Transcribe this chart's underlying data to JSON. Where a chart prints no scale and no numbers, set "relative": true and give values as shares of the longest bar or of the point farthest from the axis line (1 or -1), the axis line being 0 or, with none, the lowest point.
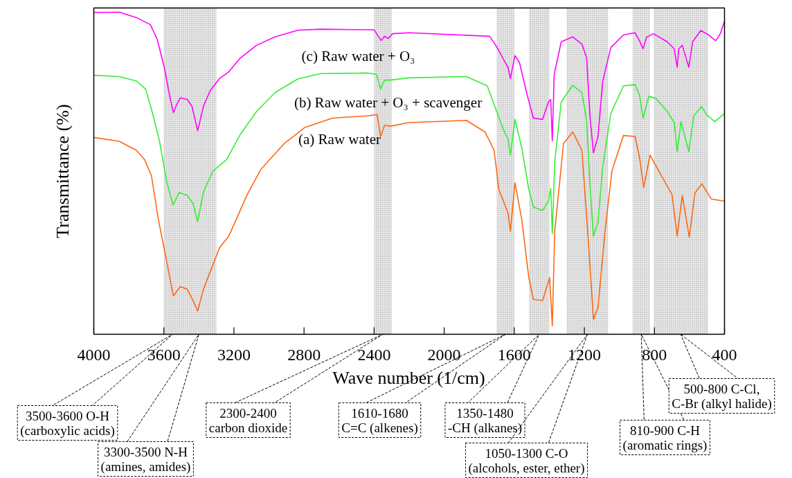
{
  "chart_data": {
    "type": "line",
    "relative": true,
    "xlabel": "Wave number (1/cm)",
    "ylabel": "Transmittance (%)",
    "xlim": [
      4000,
      400
    ],
    "xticks": [
      4000,
      3600,
      3200,
      2800,
      2400,
      2000,
      1600,
      1200,
      800,
      400
    ],
    "grid": false,
    "legend": false,
    "line_style": "solid",
    "marker": "none",
    "series": [
      {
        "name": "(c) Raw water + O₃",
        "color": "#ff00ff",
        "x": [
          4000,
          3855,
          3756,
          3677,
          3638,
          3598,
          3565,
          3546,
          3526,
          3506,
          3467,
          3440,
          3407,
          3374,
          3335,
          3282,
          3229,
          3163,
          3071,
          2966,
          2834,
          2703,
          2400,
          2360,
          2340,
          2320,
          2294,
          2202,
          1741,
          1701,
          1662,
          1636,
          1622,
          1596,
          1570,
          1530,
          1491,
          1438,
          1405,
          1392,
          1383,
          1372,
          1332,
          1266,
          1214,
          1187,
          1168,
          1148,
          1122,
          1095,
          1049,
          977,
          911,
          885,
          865,
          845,
          806,
          727,
          687,
          670,
          661,
          641,
          604,
          582,
          535,
          490,
          450,
          424,
          400
        ],
        "values": [
          0.999,
          1.0,
          0.983,
          0.961,
          0.915,
          0.829,
          0.735,
          0.688,
          0.714,
          0.734,
          0.729,
          0.708,
          0.632,
          0.708,
          0.757,
          0.794,
          0.815,
          0.858,
          0.897,
          0.923,
          0.944,
          0.947,
          0.945,
          0.912,
          0.925,
          0.918,
          0.933,
          0.936,
          0.925,
          0.893,
          0.854,
          0.829,
          0.794,
          0.865,
          0.843,
          0.751,
          0.671,
          0.667,
          0.721,
          0.729,
          0.6,
          0.807,
          0.908,
          0.923,
          0.901,
          0.858,
          0.678,
          0.563,
          0.614,
          0.786,
          0.89,
          0.929,
          0.936,
          0.911,
          0.886,
          0.922,
          0.933,
          0.908,
          0.886,
          0.829,
          0.886,
          0.897,
          0.829,
          0.908,
          0.943,
          0.929,
          0.911,
          0.933,
          0.972
        ]
      },
      {
        "name": "(b) Raw water + O₃ + scavenger",
        "color": "#33ee33",
        "x": [
          4000,
          3855,
          3756,
          3704,
          3664,
          3625,
          3585,
          3548,
          3513,
          3467,
          3434,
          3407,
          3374,
          3321,
          3242,
          3163,
          3071,
          2966,
          2834,
          2703,
          2439,
          2386,
          2363,
          2340,
          2307,
          2202,
          1873,
          1754,
          1701,
          1662,
          1636,
          1622,
          1596,
          1557,
          1517,
          1491,
          1438,
          1405,
          1392,
          1383,
          1369,
          1332,
          1266,
          1214,
          1187,
          1168,
          1148,
          1122,
          1095,
          1049,
          977,
          911,
          885,
          865,
          832,
          792,
          727,
          687,
          670,
          648,
          604,
          575,
          531,
          503,
          456,
          400
        ],
        "values": [
          0.804,
          0.8,
          0.786,
          0.761,
          0.685,
          0.599,
          0.477,
          0.401,
          0.44,
          0.431,
          0.406,
          0.35,
          0.442,
          0.506,
          0.542,
          0.621,
          0.692,
          0.75,
          0.793,
          0.809,
          0.811,
          0.807,
          0.761,
          0.789,
          0.789,
          0.796,
          0.8,
          0.771,
          0.692,
          0.635,
          0.606,
          0.556,
          0.667,
          0.578,
          0.449,
          0.395,
          0.384,
          0.413,
          0.452,
          0.312,
          0.535,
          0.721,
          0.773,
          0.75,
          0.664,
          0.463,
          0.305,
          0.348,
          0.52,
          0.685,
          0.771,
          0.775,
          0.743,
          0.671,
          0.739,
          0.732,
          0.692,
          0.657,
          0.567,
          0.66,
          0.567,
          0.678,
          0.707,
          0.682,
          0.66,
          0.685
        ]
      },
      {
        "name": "(a) Raw water",
        "color": "#ff6611",
        "x": [
          4000,
          3855,
          3756,
          3710,
          3671,
          3631,
          3592,
          3546,
          3506,
          3467,
          3434,
          3407,
          3374,
          3282,
          3229,
          3124,
          3045,
          2913,
          2795,
          2637,
          2439,
          2383,
          2363,
          2340,
          2307,
          2202,
          1873,
          1767,
          1715,
          1688,
          1636,
          1622,
          1596,
          1557,
          1517,
          1491,
          1438,
          1398,
          1383,
          1369,
          1319,
          1266,
          1214,
          1181,
          1148,
          1122,
          1082,
          1043,
          977,
          911,
          885,
          861,
          825,
          753,
          700,
          670,
          641,
          601,
          569,
          529,
          476,
          400
        ],
        "values": [
          0.611,
          0.599,
          0.571,
          0.542,
          0.492,
          0.355,
          0.248,
          0.119,
          0.148,
          0.14,
          0.105,
          0.072,
          0.14,
          0.269,
          0.305,
          0.434,
          0.513,
          0.592,
          0.642,
          0.671,
          0.678,
          0.682,
          0.614,
          0.649,
          0.646,
          0.657,
          0.664,
          0.628,
          0.571,
          0.449,
          0.377,
          0.32,
          0.47,
          0.355,
          0.176,
          0.108,
          0.105,
          0.176,
          0.026,
          0.32,
          0.592,
          0.628,
          0.571,
          0.32,
          0.047,
          0.083,
          0.32,
          0.506,
          0.617,
          0.614,
          0.549,
          0.456,
          0.556,
          0.485,
          0.434,
          0.305,
          0.431,
          0.302,
          0.438,
          0.467,
          0.42,
          0.413
        ]
      }
    ],
    "bands": [
      {
        "axis": "x",
        "from": 3600,
        "to": 3500,
        "color": "#c4c4c4",
        "label": "3500-3600 O-H\n(carboxylic acids)"
      },
      {
        "axis": "x",
        "from": 3500,
        "to": 3300,
        "color": "#c4c4c4",
        "label": "3300-3500 N-H\n(amines, amides)"
      },
      {
        "axis": "x",
        "from": 2400,
        "to": 2300,
        "color": "#c4c4c4",
        "label": "2300-2400\ncarbon dioxide"
      },
      {
        "axis": "x",
        "from": 1700,
        "to": 1600,
        "color": "#c4c4c4",
        "label": "1610-1680\nC=C (alkenes)"
      },
      {
        "axis": "x",
        "from": 1515,
        "to": 1400,
        "color": "#c4c4c4",
        "label": "1350-1480\n-CH (alkanes)"
      },
      {
        "axis": "x",
        "from": 1300,
        "to": 1065,
        "color": "#c4c4c4",
        "label": "1050-1300 C-O\n(alcohols, ester, ether)"
      },
      {
        "axis": "x",
        "from": 925,
        "to": 825,
        "color": "#c4c4c4",
        "label": "810-900 C-H\n(aromatic rings)"
      },
      {
        "axis": "x",
        "from": 805,
        "to": 495,
        "color": "#c4c4c4",
        "label": "500-800 C-Cl,\nC-Br (alkyl halide)"
      }
    ]
  }
}
